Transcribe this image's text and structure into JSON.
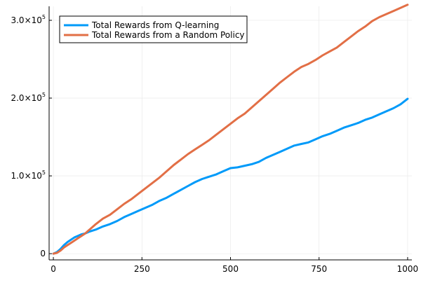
{
  "chart_data": {
    "type": "line",
    "title": "",
    "xlabel": "",
    "ylabel": "",
    "xlim": [
      -12,
      1012
    ],
    "ylim": [
      -8000,
      318000
    ],
    "grid": true,
    "legend_position": "top-left",
    "x_ticks": [
      {
        "value": 0,
        "label": "0"
      },
      {
        "value": 250,
        "label": "250"
      },
      {
        "value": 500,
        "label": "500"
      },
      {
        "value": 750,
        "label": "750"
      },
      {
        "value": 1000,
        "label": "1000"
      }
    ],
    "y_ticks": [
      {
        "value": 0,
        "mantissa": "0",
        "exponent": ""
      },
      {
        "value": 100000,
        "mantissa": "1.0×10",
        "exponent": "5"
      },
      {
        "value": 200000,
        "mantissa": "2.0×10",
        "exponent": "5"
      },
      {
        "value": 300000,
        "mantissa": "3.0×10",
        "exponent": "5"
      }
    ],
    "series": [
      {
        "name": "Total Rewards from Q-learning",
        "color": "#009af9",
        "x": [
          0,
          10,
          20,
          30,
          40,
          50,
          60,
          70,
          80,
          90,
          100,
          120,
          140,
          160,
          180,
          200,
          220,
          240,
          260,
          280,
          300,
          320,
          340,
          360,
          380,
          400,
          420,
          440,
          460,
          480,
          500,
          520,
          540,
          560,
          580,
          600,
          620,
          640,
          660,
          680,
          700,
          720,
          740,
          760,
          780,
          800,
          820,
          840,
          860,
          880,
          900,
          920,
          940,
          960,
          980,
          1000
        ],
        "y": [
          0,
          2000,
          6000,
          11000,
          15000,
          18000,
          21000,
          23000,
          25000,
          26000,
          28000,
          31000,
          35000,
          38000,
          42000,
          47000,
          51000,
          55000,
          59000,
          63000,
          68000,
          72000,
          77000,
          82000,
          87000,
          92000,
          96000,
          99000,
          102000,
          106000,
          110000,
          111000,
          113000,
          115000,
          118000,
          123000,
          127000,
          131000,
          135000,
          139000,
          141000,
          143000,
          147000,
          151000,
          154000,
          158000,
          162000,
          165000,
          168000,
          172000,
          175000,
          179000,
          183000,
          187000,
          192000,
          199000
        ]
      },
      {
        "name": "Total Rewards from a Random Policy",
        "color": "#e26f46",
        "x": [
          0,
          10,
          20,
          30,
          40,
          50,
          60,
          70,
          80,
          90,
          100,
          120,
          140,
          160,
          180,
          200,
          220,
          240,
          260,
          280,
          300,
          320,
          340,
          360,
          380,
          400,
          420,
          440,
          460,
          480,
          500,
          520,
          540,
          560,
          580,
          600,
          620,
          640,
          660,
          680,
          700,
          720,
          740,
          760,
          780,
          800,
          820,
          840,
          860,
          880,
          900,
          920,
          940,
          960,
          980,
          1000
        ],
        "y": [
          0,
          1000,
          4000,
          8000,
          11000,
          14000,
          17000,
          20000,
          23000,
          26000,
          30000,
          38000,
          45000,
          50000,
          57000,
          64000,
          70000,
          77000,
          84000,
          91000,
          98000,
          106000,
          114000,
          121000,
          128000,
          134000,
          140000,
          146000,
          153000,
          160000,
          167000,
          174000,
          180000,
          188000,
          196000,
          204000,
          212000,
          220000,
          227000,
          234000,
          240000,
          244000,
          249000,
          255000,
          260000,
          265000,
          272000,
          279000,
          286000,
          292000,
          299000,
          304000,
          308000,
          312000,
          316000,
          320000
        ]
      }
    ]
  }
}
